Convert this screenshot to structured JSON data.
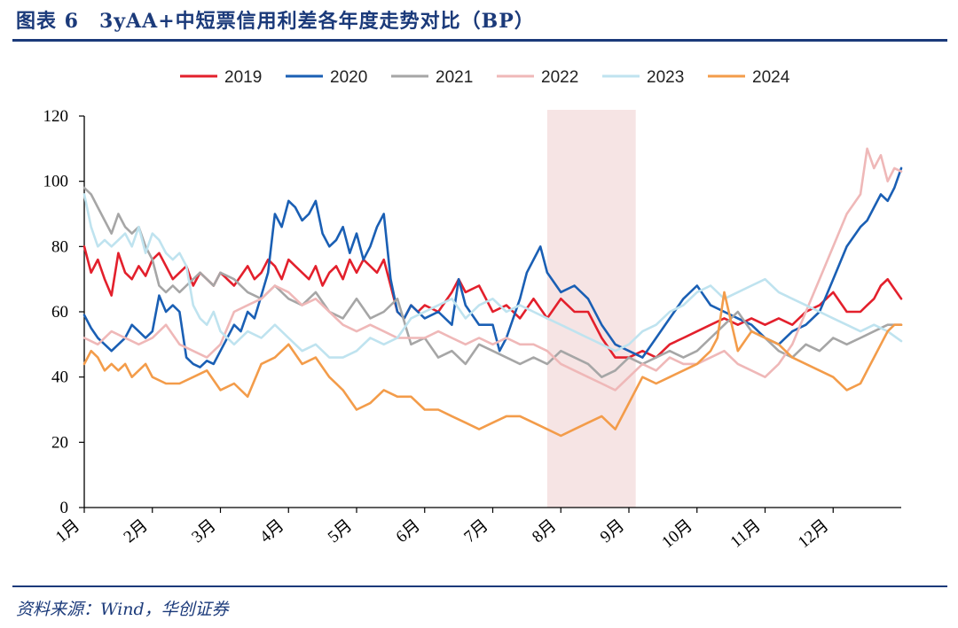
{
  "header": {
    "title": "图表 6　3yAA+中短票信用利差各年度走势对比（BP）"
  },
  "footer": {
    "source": "资料来源：Wind，华创证券"
  },
  "chart_data": {
    "type": "line",
    "title": "3yAA+中短票信用利差各年度走势对比（BP）",
    "xlabel": "",
    "ylabel": "",
    "ylim": [
      0,
      120
    ],
    "yticks": [
      0,
      20,
      40,
      60,
      80,
      100,
      120
    ],
    "categories": [
      "1月",
      "2月",
      "3月",
      "4月",
      "5月",
      "6月",
      "7月",
      "8月",
      "9月",
      "10月",
      "11月",
      "12月"
    ],
    "month_start_positions": [
      0,
      1,
      2,
      3,
      4,
      5,
      6,
      7,
      8,
      9,
      10,
      11
    ],
    "x_end": 12,
    "shaded_range": [
      6.8,
      8.1
    ],
    "legend_position": "top-center",
    "series": [
      {
        "name": "2019",
        "color": "#e3202c",
        "x": [
          0,
          0.1,
          0.2,
          0.3,
          0.4,
          0.5,
          0.6,
          0.7,
          0.8,
          0.9,
          1.0,
          1.1,
          1.2,
          1.3,
          1.4,
          1.5,
          1.6,
          1.7,
          1.8,
          1.9,
          2.0,
          2.2,
          2.4,
          2.5,
          2.6,
          2.7,
          2.8,
          2.9,
          3.0,
          3.1,
          3.2,
          3.3,
          3.4,
          3.5,
          3.6,
          3.7,
          3.8,
          3.9,
          4.0,
          4.1,
          4.2,
          4.3,
          4.4,
          4.5,
          4.6,
          4.7,
          4.8,
          4.9,
          5.0,
          5.2,
          5.4,
          5.5,
          5.6,
          5.8,
          6.0,
          6.2,
          6.4,
          6.6,
          6.8,
          7.0,
          7.2,
          7.4,
          7.6,
          7.8,
          8.0,
          8.2,
          8.4,
          8.6,
          8.8,
          9.0,
          9.2,
          9.4,
          9.6,
          9.8,
          10.0,
          10.2,
          10.4,
          10.6,
          10.8,
          11.0,
          11.2,
          11.4,
          11.5,
          11.6,
          11.7,
          11.8,
          11.9,
          12.0
        ],
        "y": [
          80,
          72,
          76,
          70,
          65,
          78,
          72,
          70,
          74,
          71,
          76,
          78,
          74,
          70,
          72,
          74,
          68,
          72,
          70,
          68,
          72,
          68,
          74,
          70,
          72,
          76,
          74,
          70,
          76,
          74,
          72,
          70,
          74,
          68,
          72,
          74,
          70,
          76,
          72,
          76,
          74,
          72,
          76,
          68,
          60,
          58,
          62,
          60,
          62,
          60,
          66,
          70,
          66,
          68,
          60,
          62,
          58,
          64,
          58,
          64,
          60,
          60,
          52,
          46,
          46,
          48,
          46,
          50,
          52,
          54,
          56,
          58,
          56,
          58,
          56,
          58,
          56,
          60,
          62,
          66,
          60,
          60,
          62,
          64,
          68,
          70,
          67,
          64
        ]
      },
      {
        "name": "2020",
        "color": "#1a5fb4",
        "x": [
          0,
          0.1,
          0.2,
          0.3,
          0.4,
          0.5,
          0.6,
          0.7,
          0.8,
          0.9,
          1.0,
          1.1,
          1.2,
          1.3,
          1.4,
          1.5,
          1.6,
          1.7,
          1.8,
          1.9,
          2.0,
          2.1,
          2.2,
          2.3,
          2.4,
          2.5,
          2.6,
          2.7,
          2.8,
          2.9,
          3.0,
          3.1,
          3.2,
          3.3,
          3.4,
          3.5,
          3.6,
          3.7,
          3.8,
          3.9,
          4.0,
          4.1,
          4.2,
          4.3,
          4.4,
          4.5,
          4.6,
          4.7,
          4.8,
          4.9,
          5.0,
          5.2,
          5.4,
          5.5,
          5.6,
          5.8,
          6.0,
          6.1,
          6.2,
          6.4,
          6.5,
          6.6,
          6.7,
          6.8,
          7.0,
          7.2,
          7.4,
          7.6,
          7.8,
          8.0,
          8.2,
          8.4,
          8.6,
          8.8,
          9.0,
          9.2,
          9.4,
          9.6,
          9.8,
          10.0,
          10.2,
          10.4,
          10.6,
          10.8,
          11.0,
          11.2,
          11.4,
          11.5,
          11.6,
          11.7,
          11.8,
          11.9,
          12.0
        ],
        "y": [
          59,
          55,
          52,
          50,
          48,
          50,
          52,
          56,
          54,
          52,
          54,
          65,
          60,
          62,
          60,
          46,
          44,
          43,
          45,
          44,
          48,
          52,
          56,
          54,
          60,
          58,
          65,
          72,
          90,
          86,
          94,
          92,
          88,
          90,
          94,
          84,
          80,
          82,
          86,
          78,
          84,
          76,
          80,
          86,
          90,
          70,
          60,
          58,
          62,
          60,
          58,
          60,
          56,
          70,
          62,
          56,
          56,
          48,
          52,
          64,
          72,
          76,
          80,
          72,
          66,
          68,
          64,
          56,
          50,
          48,
          46,
          52,
          58,
          64,
          68,
          62,
          60,
          58,
          56,
          52,
          50,
          54,
          56,
          60,
          70,
          80,
          86,
          88,
          92,
          96,
          94,
          98,
          104
        ]
      },
      {
        "name": "2021",
        "color": "#a6a6a6",
        "x": [
          0,
          0.1,
          0.2,
          0.3,
          0.4,
          0.5,
          0.6,
          0.7,
          0.8,
          0.9,
          1.0,
          1.1,
          1.2,
          1.3,
          1.4,
          1.5,
          1.6,
          1.7,
          1.8,
          1.9,
          2.0,
          2.2,
          2.4,
          2.6,
          2.8,
          3.0,
          3.2,
          3.4,
          3.6,
          3.8,
          4.0,
          4.2,
          4.4,
          4.6,
          4.8,
          5.0,
          5.2,
          5.4,
          5.6,
          5.8,
          6.0,
          6.2,
          6.4,
          6.6,
          6.8,
          7.0,
          7.2,
          7.4,
          7.6,
          7.8,
          8.0,
          8.2,
          8.4,
          8.6,
          8.8,
          9.0,
          9.2,
          9.4,
          9.6,
          9.8,
          10.0,
          10.2,
          10.4,
          10.6,
          10.8,
          11.0,
          11.2,
          11.4,
          11.6,
          11.8,
          12.0
        ],
        "y": [
          98,
          96,
          92,
          88,
          84,
          90,
          86,
          84,
          86,
          80,
          76,
          68,
          66,
          68,
          66,
          68,
          70,
          72,
          70,
          68,
          72,
          70,
          66,
          64,
          68,
          64,
          62,
          66,
          60,
          58,
          64,
          58,
          60,
          64,
          50,
          52,
          46,
          48,
          44,
          50,
          48,
          46,
          44,
          46,
          44,
          48,
          46,
          44,
          40,
          42,
          46,
          44,
          46,
          48,
          46,
          48,
          52,
          56,
          60,
          54,
          52,
          48,
          46,
          50,
          48,
          52,
          50,
          52,
          54,
          56,
          56
        ]
      },
      {
        "name": "2022",
        "color": "#efb8b8",
        "x": [
          0,
          0.2,
          0.4,
          0.6,
          0.8,
          1.0,
          1.2,
          1.4,
          1.6,
          1.8,
          2.0,
          2.2,
          2.4,
          2.6,
          2.8,
          3.0,
          3.2,
          3.4,
          3.6,
          3.8,
          4.0,
          4.2,
          4.4,
          4.6,
          4.8,
          5.0,
          5.2,
          5.4,
          5.6,
          5.8,
          6.0,
          6.2,
          6.4,
          6.6,
          6.8,
          7.0,
          7.2,
          7.4,
          7.6,
          7.8,
          8.0,
          8.2,
          8.4,
          8.6,
          8.8,
          9.0,
          9.2,
          9.4,
          9.6,
          9.8,
          10.0,
          10.2,
          10.4,
          10.6,
          10.8,
          11.0,
          11.2,
          11.4,
          11.5,
          11.6,
          11.7,
          11.8,
          11.9,
          12.0
        ],
        "y": [
          52,
          50,
          54,
          52,
          50,
          52,
          56,
          50,
          48,
          46,
          50,
          60,
          62,
          64,
          68,
          66,
          62,
          64,
          60,
          56,
          54,
          56,
          54,
          52,
          52,
          52,
          54,
          52,
          50,
          52,
          50,
          52,
          50,
          50,
          48,
          44,
          42,
          40,
          38,
          36,
          40,
          44,
          42,
          46,
          44,
          44,
          46,
          48,
          44,
          42,
          40,
          44,
          50,
          60,
          70,
          80,
          90,
          96,
          110,
          104,
          108,
          100,
          104,
          103
        ]
      },
      {
        "name": "2023",
        "color": "#bfe3ef",
        "x": [
          0,
          0.1,
          0.2,
          0.3,
          0.4,
          0.5,
          0.6,
          0.7,
          0.8,
          0.9,
          1.0,
          1.1,
          1.2,
          1.3,
          1.4,
          1.5,
          1.6,
          1.7,
          1.8,
          1.9,
          2.0,
          2.2,
          2.4,
          2.6,
          2.8,
          3.0,
          3.2,
          3.4,
          3.6,
          3.8,
          4.0,
          4.2,
          4.4,
          4.6,
          4.8,
          5.0,
          5.2,
          5.4,
          5.6,
          5.8,
          6.0,
          6.2,
          6.4,
          6.6,
          6.8,
          7.0,
          7.2,
          7.4,
          7.6,
          7.8,
          8.0,
          8.2,
          8.4,
          8.6,
          8.8,
          9.0,
          9.2,
          9.4,
          9.6,
          9.8,
          10.0,
          10.2,
          10.4,
          10.6,
          10.8,
          11.0,
          11.2,
          11.4,
          11.6,
          11.8,
          12.0
        ],
        "y": [
          96,
          86,
          80,
          82,
          80,
          82,
          84,
          80,
          86,
          78,
          84,
          82,
          78,
          76,
          78,
          74,
          62,
          58,
          56,
          60,
          54,
          50,
          54,
          52,
          56,
          52,
          48,
          50,
          46,
          46,
          48,
          52,
          50,
          52,
          58,
          60,
          62,
          64,
          58,
          62,
          64,
          60,
          62,
          60,
          58,
          56,
          54,
          52,
          50,
          48,
          50,
          54,
          56,
          60,
          62,
          66,
          68,
          64,
          66,
          68,
          70,
          66,
          64,
          62,
          60,
          58,
          56,
          54,
          56,
          54,
          51
        ]
      },
      {
        "name": "2024",
        "color": "#f39c4a",
        "x": [
          0,
          0.1,
          0.2,
          0.3,
          0.4,
          0.5,
          0.6,
          0.7,
          0.8,
          0.9,
          1.0,
          1.2,
          1.4,
          1.6,
          1.8,
          2.0,
          2.2,
          2.4,
          2.6,
          2.8,
          3.0,
          3.2,
          3.4,
          3.6,
          3.8,
          4.0,
          4.2,
          4.4,
          4.6,
          4.8,
          5.0,
          5.2,
          5.4,
          5.6,
          5.8,
          6.0,
          6.2,
          6.4,
          6.6,
          6.8,
          7.0,
          7.2,
          7.4,
          7.6,
          7.8,
          8.0,
          8.2,
          8.4,
          8.6,
          8.8,
          9.0,
          9.2,
          9.3,
          9.4,
          9.6,
          9.8,
          10.0,
          10.2,
          10.4,
          10.6,
          10.8,
          11.0,
          11.2,
          11.4,
          11.5,
          11.6,
          11.7,
          11.8,
          11.9,
          12.0
        ],
        "y": [
          44,
          48,
          46,
          42,
          44,
          42,
          44,
          40,
          42,
          44,
          40,
          38,
          38,
          40,
          42,
          36,
          38,
          34,
          44,
          46,
          50,
          44,
          46,
          40,
          36,
          30,
          32,
          36,
          34,
          34,
          30,
          30,
          28,
          26,
          24,
          26,
          28,
          28,
          26,
          24,
          22,
          24,
          26,
          28,
          24,
          32,
          40,
          38,
          40,
          42,
          44,
          48,
          52,
          66,
          48,
          54,
          52,
          50,
          46,
          44,
          42,
          40,
          36,
          38,
          42,
          46,
          50,
          54,
          56,
          56
        ]
      }
    ]
  }
}
